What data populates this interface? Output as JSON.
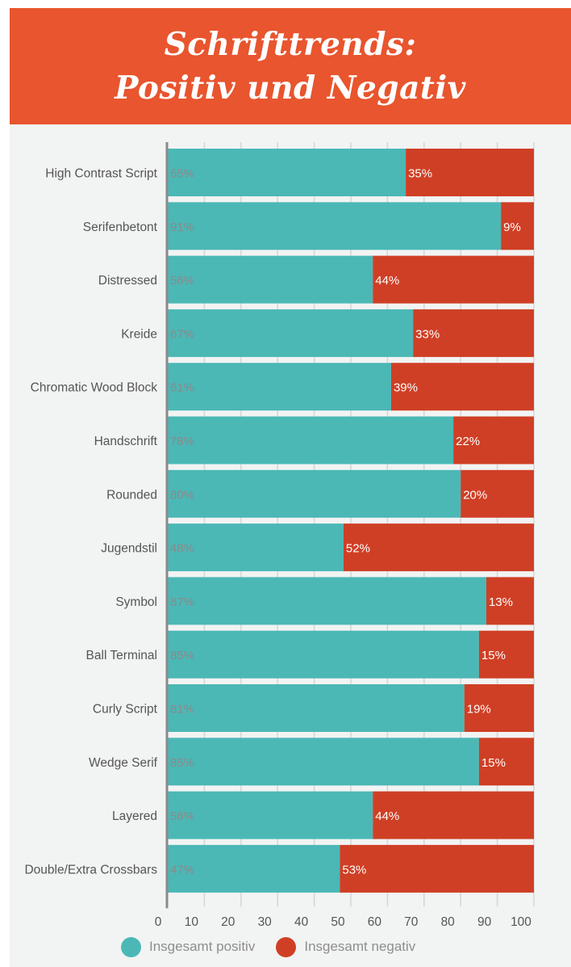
{
  "header": {
    "title_line1": "Schrifttrends:",
    "title_line2": "Positiv und Negativ"
  },
  "colors": {
    "positive": "#4bb8b6",
    "negative": "#cf3f25",
    "title_bg": "#e8552e",
    "panel_bg": "#f2f3f3",
    "grid": "#d4d6d6",
    "axis": "#8a8a8a",
    "label_text": "#555555",
    "positive_label_text": "#8a8a8a",
    "negative_label_text": "#ffffff"
  },
  "chart_data": {
    "type": "bar",
    "orientation": "horizontal",
    "stacked": true,
    "categories": [
      "High Contrast Script",
      "Serifenbetont",
      "Distressed",
      "Kreide",
      "Chromatic Wood Block",
      "Handschrift",
      "Rounded",
      "Jugendstil",
      "Symbol",
      "Ball Terminal",
      "Curly Script",
      "Wedge Serif",
      "Layered",
      "Double/Extra Crossbars"
    ],
    "series": [
      {
        "name": "Insgesamt positiv",
        "values": [
          65,
          91,
          56,
          67,
          61,
          78,
          80,
          48,
          87,
          85,
          81,
          85,
          56,
          47
        ]
      },
      {
        "name": "Insgesamt negativ",
        "values": [
          35,
          9,
          44,
          33,
          39,
          22,
          20,
          52,
          13,
          15,
          19,
          15,
          44,
          53
        ]
      }
    ],
    "value_suffix": "%",
    "xlim": [
      0,
      100
    ],
    "xticks": [
      0,
      10,
      20,
      30,
      40,
      50,
      60,
      70,
      80,
      90,
      100
    ],
    "grid": true,
    "legend_position": "bottom"
  }
}
